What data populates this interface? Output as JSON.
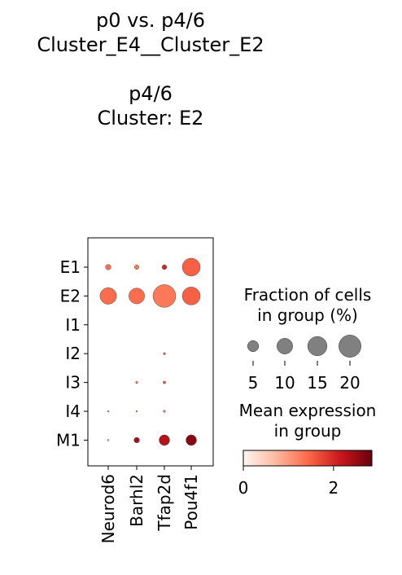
{
  "title": {
    "line1": "p0 vs. p4/6",
    "line2": "Cluster_E4__Cluster_E2",
    "line3": "p4/6",
    "line4": "Cluster: E2"
  },
  "chart_data": {
    "type": "dotplot",
    "genes": [
      "Neurod6",
      "Barhl2",
      "Tfap2d",
      "Pou4f1"
    ],
    "groups": [
      "E1",
      "E2",
      "I1",
      "I2",
      "I3",
      "I4",
      "M1"
    ],
    "fraction_pct": [
      [
        1.2,
        0.8,
        0.9,
        13
      ],
      [
        11,
        10,
        21,
        13
      ],
      [
        0,
        0,
        0,
        0
      ],
      [
        0,
        0,
        0.2,
        0
      ],
      [
        0,
        0.2,
        0.3,
        0
      ],
      [
        0.1,
        0.1,
        0.2,
        0
      ],
      [
        0.1,
        1.2,
        4.5,
        4.5
      ]
    ],
    "mean_expression": [
      [
        1.4,
        1.3,
        2.0,
        1.5
      ],
      [
        1.4,
        1.4,
        1.3,
        1.5
      ],
      [
        0,
        0,
        0,
        0
      ],
      [
        0,
        0,
        1.5,
        0
      ],
      [
        0,
        1.2,
        1.5,
        0
      ],
      [
        1.0,
        1.0,
        1.2,
        0
      ],
      [
        1.0,
        2.4,
        2.3,
        2.6
      ]
    ],
    "size_legend": {
      "title_line1": "Fraction of cells",
      "title_line2": "in group (%)",
      "values": [
        5,
        10,
        15,
        20
      ]
    },
    "color_legend": {
      "title_line1": "Mean expression",
      "title_line2": "in group",
      "range": [
        0,
        2.85
      ],
      "ticks": [
        0,
        2
      ],
      "colormap": "Reds"
    }
  }
}
